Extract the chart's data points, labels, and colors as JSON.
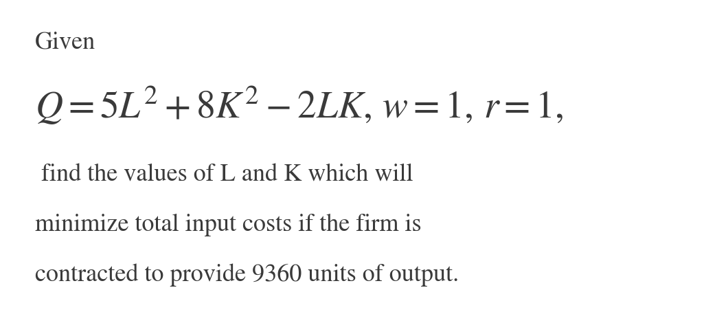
{
  "background_color": "#ffffff",
  "text_color": "#3a3a3a",
  "line1": "Given",
  "line2": "$Q = 5L^2 + 8K^2 - 2LK,\\,w = 1,\\,r = 1,$",
  "line3": " find the values of L and K which will",
  "line4": "minimize total input costs if the firm is",
  "line5": "contracted to provide 9360 units of output.",
  "line1_fontsize": 26,
  "line2_fontsize": 40,
  "line3_fontsize": 26,
  "line4_fontsize": 26,
  "line5_fontsize": 26,
  "fig_width": 10.25,
  "fig_height": 4.54,
  "dpi": 100
}
